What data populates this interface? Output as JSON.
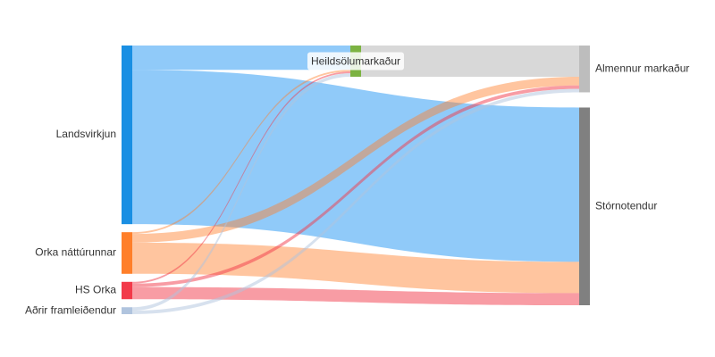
{
  "chart_data": {
    "type": "sankey",
    "nodes": [
      {
        "label": "Landsvirkjun",
        "color": "#1a8fe3",
        "column": 0
      },
      {
        "label": "Orka náttúrunnar",
        "color": "#ff7f2a",
        "column": 0
      },
      {
        "label": "HS Orka",
        "color": "#f23a4a",
        "column": 0
      },
      {
        "label": "Aðrir framleiðendur",
        "color": "#b0c4de",
        "column": 0
      },
      {
        "label": "Heildsölumarkaður",
        "color": "#7cb342",
        "column": 1
      },
      {
        "label": "Almennur markaður",
        "color": "#bdbdbd",
        "column": 2
      },
      {
        "label": "Stórnotendur",
        "color": "#808080",
        "column": 2
      }
    ],
    "links": [
      {
        "source": 0,
        "target": 4,
        "value": 28,
        "color": "rgba(33,150,243,0.5)"
      },
      {
        "source": 0,
        "target": 6,
        "value": 178,
        "color": "rgba(33,150,243,0.5)"
      },
      {
        "source": 1,
        "target": 4,
        "value": 2,
        "color": "rgba(255,127,42,0.45)"
      },
      {
        "source": 1,
        "target": 5,
        "value": 10,
        "color": "rgba(255,127,42,0.45)"
      },
      {
        "source": 1,
        "target": 6,
        "value": 36,
        "color": "rgba(255,127,42,0.45)"
      },
      {
        "source": 2,
        "target": 4,
        "value": 2,
        "color": "rgba(242,58,74,0.5)"
      },
      {
        "source": 2,
        "target": 5,
        "value": 4,
        "color": "rgba(242,58,74,0.5)"
      },
      {
        "source": 2,
        "target": 6,
        "value": 14,
        "color": "rgba(242,58,74,0.5)"
      },
      {
        "source": 3,
        "target": 4,
        "value": 4,
        "color": "rgba(176,196,222,0.5)"
      },
      {
        "source": 3,
        "target": 5,
        "value": 4,
        "color": "rgba(176,196,222,0.5)"
      },
      {
        "source": 4,
        "target": 5,
        "value": 36,
        "color": "rgba(200,200,200,0.7)"
      }
    ]
  }
}
